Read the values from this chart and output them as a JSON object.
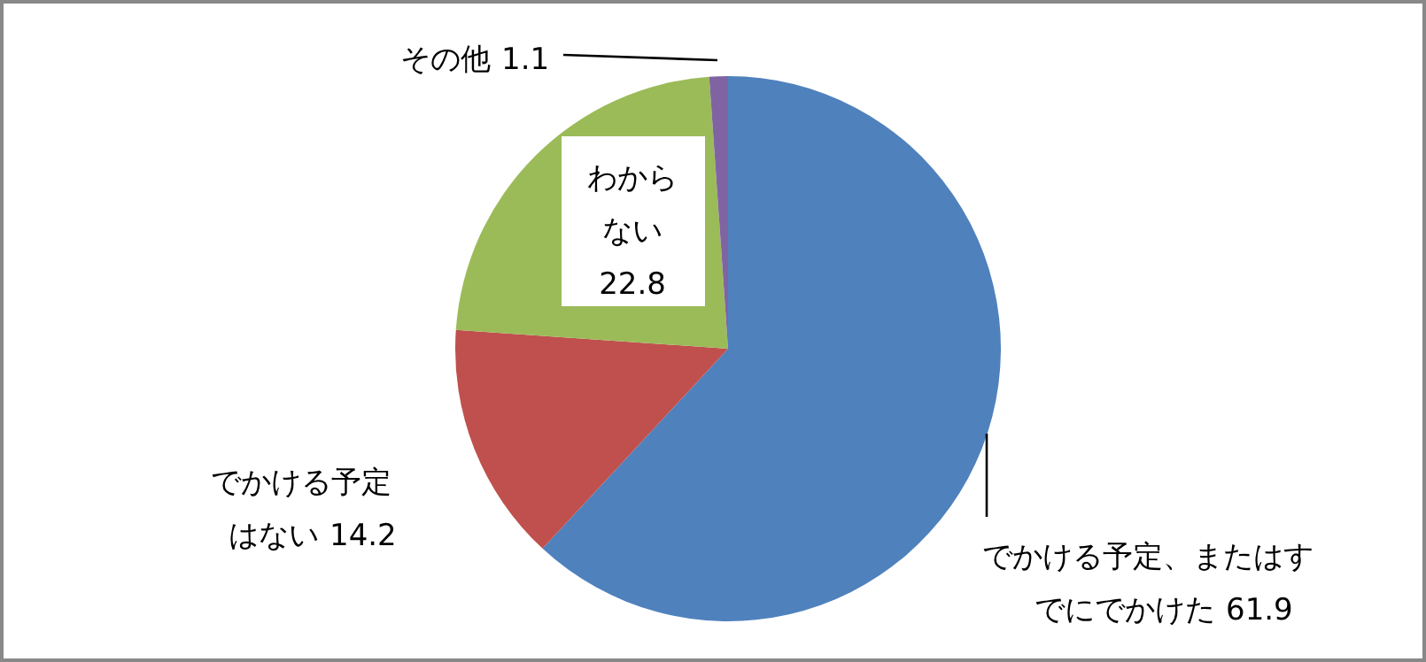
{
  "chart_data": {
    "type": "pie",
    "categories": [
      "でかける予定、またはすでにでかけた",
      "でかける予定はない",
      "わからない",
      "その他"
    ],
    "values": [
      61.9,
      14.2,
      22.8,
      1.1
    ],
    "colors": [
      "#4f81bd",
      "#c0504d",
      "#9bbb59",
      "#8064a2"
    ],
    "data_labels": true
  }
}
